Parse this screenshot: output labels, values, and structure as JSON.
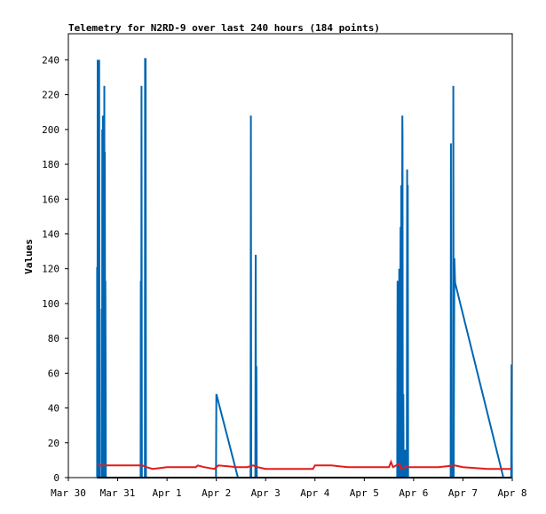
{
  "chart_data": {
    "type": "line",
    "title": "Telemetry for N2RD-9 over last 240 hours (184 points)",
    "xlabel": "",
    "ylabel": "Values",
    "xlim": [
      "2023-03-30T00:00",
      "2023-04-08T00:00"
    ],
    "ylim": [
      0,
      255
    ],
    "x_ticks": [
      "Mar 30",
      "Mar 31",
      "Apr 1",
      "Apr 2",
      "Apr 3",
      "Apr 4",
      "Apr 5",
      "Apr 6",
      "Apr 7",
      "Apr 8"
    ],
    "y_ticks": [
      0,
      20,
      40,
      60,
      80,
      100,
      120,
      140,
      160,
      180,
      200,
      220,
      240
    ],
    "grid": false,
    "legend": "none",
    "series": [
      {
        "color": "#0066b3",
        "points": [
          [
            "2023-03-30T14:00",
            0
          ],
          [
            "2023-03-30T14:00",
            121
          ],
          [
            "2023-03-30T14:10",
            0
          ],
          [
            "2023-03-30T14:15",
            240
          ],
          [
            "2023-03-30T14:25",
            0
          ],
          [
            "2023-03-30T14:35",
            104
          ],
          [
            "2023-03-30T14:45",
            0
          ],
          [
            "2023-03-30T15:00",
            240
          ],
          [
            "2023-03-30T15:10",
            0
          ],
          [
            "2023-03-30T16:10",
            0
          ],
          [
            "2023-03-30T16:15",
            97
          ],
          [
            "2023-03-30T16:25",
            0
          ],
          [
            "2023-03-30T16:30",
            200
          ],
          [
            "2023-03-30T16:40",
            0
          ],
          [
            "2023-03-30T16:50",
            208
          ],
          [
            "2023-03-30T17:00",
            0
          ],
          [
            "2023-03-30T17:10",
            168
          ],
          [
            "2023-03-30T17:20",
            0
          ],
          [
            "2023-03-30T17:30",
            225
          ],
          [
            "2023-03-30T17:40",
            0
          ],
          [
            "2023-03-30T17:45",
            187
          ],
          [
            "2023-03-30T17:55",
            0
          ],
          [
            "2023-03-30T18:00",
            113
          ],
          [
            "2023-03-30T18:10",
            40
          ],
          [
            "2023-03-30T18:15",
            0
          ],
          [
            "2023-03-31T11:10",
            0
          ],
          [
            "2023-03-31T11:15",
            113
          ],
          [
            "2023-03-31T11:25",
            0
          ],
          [
            "2023-03-31T11:35",
            225
          ],
          [
            "2023-03-31T11:45",
            0
          ],
          [
            "2023-03-31T13:15",
            0
          ],
          [
            "2023-03-31T13:20",
            241
          ],
          [
            "2023-03-31T13:30",
            0
          ],
          [
            "2023-03-31T13:35",
            241
          ],
          [
            "2023-03-31T13:45",
            0
          ],
          [
            "2023-04-01T23:50",
            0
          ],
          [
            "2023-04-02T00:00",
            48
          ],
          [
            "2023-04-02T10:30",
            0
          ],
          [
            "2023-04-02T16:40",
            0
          ],
          [
            "2023-04-02T16:50",
            208
          ],
          [
            "2023-04-02T17:00",
            0
          ],
          [
            "2023-04-02T19:00",
            0
          ],
          [
            "2023-04-02T19:10",
            128
          ],
          [
            "2023-04-02T19:20",
            0
          ],
          [
            "2023-04-02T19:30",
            64
          ],
          [
            "2023-04-02T19:40",
            0
          ],
          [
            "2023-04-05T16:00",
            0
          ],
          [
            "2023-04-05T16:10",
            113
          ],
          [
            "2023-04-05T16:20",
            0
          ],
          [
            "2023-04-05T16:40",
            56
          ],
          [
            "2023-04-05T16:50",
            0
          ],
          [
            "2023-04-05T17:00",
            120
          ],
          [
            "2023-04-05T17:10",
            0
          ],
          [
            "2023-04-05T17:40",
            144
          ],
          [
            "2023-04-05T17:50",
            0
          ],
          [
            "2023-04-05T18:00",
            168
          ],
          [
            "2023-04-05T18:10",
            0
          ],
          [
            "2023-04-05T18:30",
            208
          ],
          [
            "2023-04-05T18:35",
            196
          ],
          [
            "2023-04-05T18:45",
            0
          ],
          [
            "2023-04-05T19:00",
            48
          ],
          [
            "2023-04-05T19:10",
            0
          ],
          [
            "2023-04-05T19:40",
            0
          ],
          [
            "2023-04-05T19:50",
            16
          ],
          [
            "2023-04-05T20:00",
            0
          ],
          [
            "2023-04-05T20:40",
            0
          ],
          [
            "2023-04-05T20:50",
            177
          ],
          [
            "2023-04-05T21:00",
            0
          ],
          [
            "2023-04-05T21:10",
            168
          ],
          [
            "2023-04-05T21:20",
            0
          ],
          [
            "2023-04-06T18:00",
            0
          ],
          [
            "2023-04-06T18:10",
            192
          ],
          [
            "2023-04-06T18:20",
            0
          ],
          [
            "2023-04-06T19:10",
            0
          ],
          [
            "2023-04-06T19:20",
            225
          ],
          [
            "2023-04-06T19:30",
            0
          ],
          [
            "2023-04-06T19:50",
            126
          ],
          [
            "2023-04-06T20:10",
            112
          ],
          [
            "2023-04-07T19:40",
            0
          ],
          [
            "2023-04-07T23:30",
            0
          ],
          [
            "2023-04-07T23:40",
            65
          ],
          [
            "2023-04-07T23:50",
            0
          ]
        ]
      },
      {
        "color": "#e41a1c",
        "points": [
          [
            "2023-03-30T14:00",
            7
          ],
          [
            "2023-03-30T20:00",
            7
          ],
          [
            "2023-03-31T00:00",
            7
          ],
          [
            "2023-03-31T12:00",
            7
          ],
          [
            "2023-03-31T14:00",
            6
          ],
          [
            "2023-03-31T17:00",
            5
          ],
          [
            "2023-04-01T00:00",
            6
          ],
          [
            "2023-04-01T14:00",
            6
          ],
          [
            "2023-04-01T15:00",
            7
          ],
          [
            "2023-04-01T18:00",
            6
          ],
          [
            "2023-04-01T23:00",
            5
          ],
          [
            "2023-04-02T01:00",
            7
          ],
          [
            "2023-04-02T10:00",
            6
          ],
          [
            "2023-04-02T15:00",
            6
          ],
          [
            "2023-04-02T18:00",
            7
          ],
          [
            "2023-04-02T20:00",
            6
          ],
          [
            "2023-04-03T00:00",
            5
          ],
          [
            "2023-04-03T23:00",
            5
          ],
          [
            "2023-04-04T00:00",
            7
          ],
          [
            "2023-04-04T08:00",
            7
          ],
          [
            "2023-04-04T16:00",
            6
          ],
          [
            "2023-04-05T00:00",
            6
          ],
          [
            "2023-04-05T12:00",
            6
          ],
          [
            "2023-04-05T13:00",
            9
          ],
          [
            "2023-04-05T14:00",
            6
          ],
          [
            "2023-04-05T17:00",
            8
          ],
          [
            "2023-04-05T18:00",
            5
          ],
          [
            "2023-04-05T20:00",
            6
          ],
          [
            "2023-04-05T22:00",
            6
          ],
          [
            "2023-04-06T12:00",
            6
          ],
          [
            "2023-04-06T20:00",
            7
          ],
          [
            "2023-04-07T00:00",
            6
          ],
          [
            "2023-04-07T12:00",
            5
          ],
          [
            "2023-04-07T23:40",
            5
          ]
        ]
      },
      {
        "color": "#000000",
        "points": [
          [
            "2023-03-30T14:00",
            0
          ],
          [
            "2023-04-07T23:40",
            0
          ]
        ]
      }
    ]
  }
}
